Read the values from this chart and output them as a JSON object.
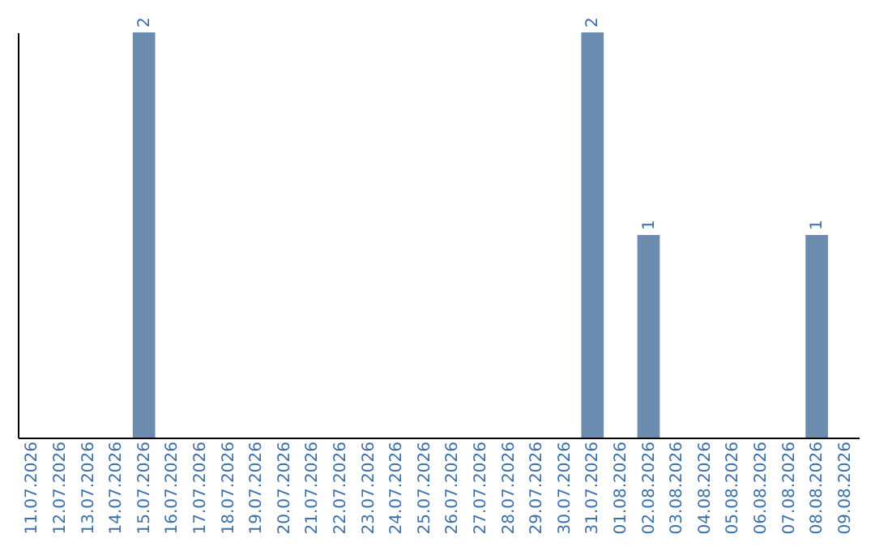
{
  "chart_data": {
    "type": "bar",
    "categories": [
      "11.07.2026",
      "12.07.2026",
      "13.07.2026",
      "14.07.2026",
      "15.07.2026",
      "16.07.2026",
      "17.07.2026",
      "18.07.2026",
      "19.07.2026",
      "20.07.2026",
      "21.07.2026",
      "22.07.2026",
      "23.07.2026",
      "24.07.2026",
      "25.07.2026",
      "26.07.2026",
      "27.07.2026",
      "28.07.2026",
      "29.07.2026",
      "30.07.2026",
      "31.07.2026",
      "01.08.2026",
      "02.08.2026",
      "03.08.2026",
      "04.08.2026",
      "05.08.2026",
      "06.08.2026",
      "07.08.2026",
      "08.08.2026",
      "09.08.2026"
    ],
    "values": [
      0,
      0,
      0,
      0,
      2,
      0,
      0,
      0,
      0,
      0,
      0,
      0,
      0,
      0,
      0,
      0,
      0,
      0,
      0,
      0,
      2,
      0,
      1,
      0,
      0,
      0,
      0,
      0,
      1,
      0
    ],
    "value_labels": [
      null,
      null,
      null,
      null,
      "2",
      null,
      null,
      null,
      null,
      null,
      null,
      null,
      null,
      null,
      null,
      null,
      null,
      null,
      null,
      null,
      "2",
      null,
      "1",
      null,
      null,
      null,
      null,
      null,
      "1",
      null
    ],
    "color": "#6b8cae",
    "tick_labels": "x",
    "grid": false
  }
}
